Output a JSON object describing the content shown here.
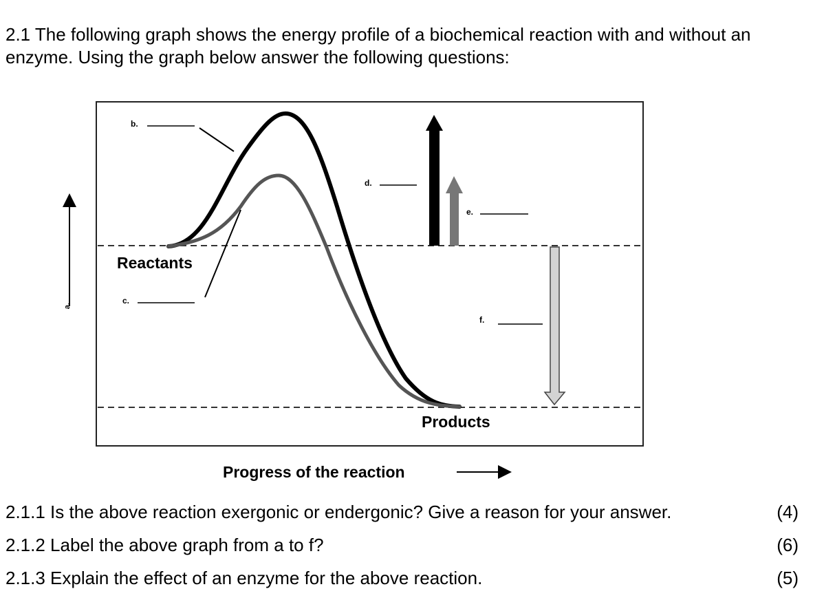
{
  "intro": "2.1 The following graph shows the energy profile of a biochemical reaction with and without an enzyme. Using the graph below answer the following questions:",
  "diagram": {
    "label_a": "a.",
    "label_b": "b.",
    "label_c": "c.",
    "label_d": "d.",
    "label_e": "e.",
    "label_f": "f.",
    "reactants": "Reactants",
    "products": "Products",
    "x_axis": "Progress of the reaction"
  },
  "questions": [
    {
      "text": "2.1.1 Is the above reaction exergonic or endergonic? Give a reason for your answer.",
      "marks": "(4)"
    },
    {
      "text": "2.1.2 Label the above graph from a to f?",
      "marks": "(6)"
    },
    {
      "text": "2.1.3 Explain the effect of an enzyme for the above reaction.",
      "marks": "(5)"
    }
  ]
}
